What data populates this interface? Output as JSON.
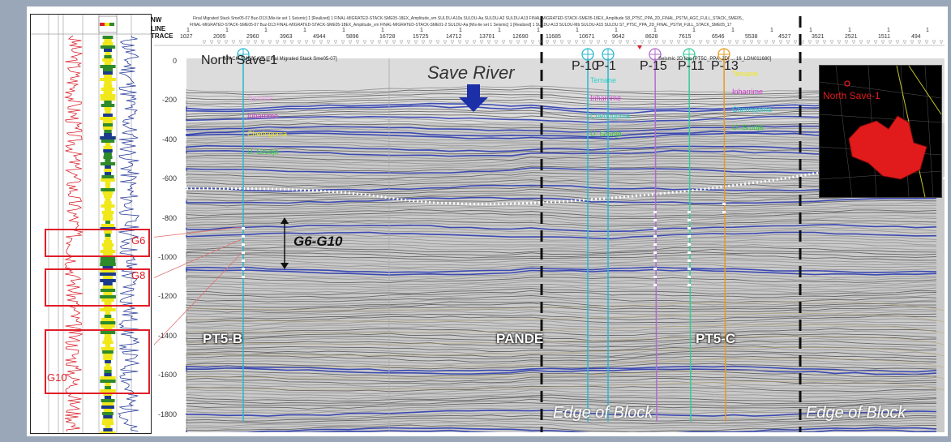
{
  "header": {
    "nw": "NW",
    "line_label": "LINE",
    "trace_label": "TRACE",
    "top_row": "Final Migrated Stack Sme05-07   Buz-D13 [Mis-tie set 1 Seismic] 1 [Realized] 1    FINAL-MIGRATED-STACK-SME05-18EX_Amplitude_vm        SULDU-A10a       SULDU-Aa          SULDU-A2          SULDU-A13     FINAL-MIGRATED-STACK-SME05-18EX_Amplitude          S8_PT5C_PPA_2D_FINAL_PSTM_AGC_FULL_STACK_SME05_",
    "second_row": "FINAL-MIGRATED-STACK-SME05-07      Buz-D13    FINAL-MIGRATED-STACK-SME05-18EX_Amplitude_vm      FINAL-MIGRATED-STACK-SME01-2     SULDU-Aa [Mis-tie set 1 Seismic] 1 [Realized] 1    SULDU-A13    SULDU-Mb    SULDU-A15   SULDU    S7_PT5C_PPA_2D_FINAL_PSTM_FULL_STACK_SME05_17",
    "line_values": [
      "1",
      "1",
      "1",
      "1",
      "1",
      "1",
      "1",
      "1",
      "1",
      "1",
      "1",
      "1",
      "1",
      "1",
      "1",
      "1",
      "1",
      "1",
      "1",
      "1"
    ],
    "trace_values": [
      "1027",
      "2005",
      "2960",
      "3963",
      "4944",
      "5896",
      "16728",
      "15725",
      "14712",
      "13701",
      "12690",
      "11685",
      "10671",
      "9642",
      "8628",
      "7615",
      "6546",
      "5538",
      "4527",
      "3521",
      "2521",
      "1511",
      "494"
    ]
  },
  "depth_ticks": [
    "0",
    "-200",
    "-400",
    "-600",
    "-800",
    "-1000",
    "-1200",
    "-1400",
    "-1600",
    "-1800"
  ],
  "wells": {
    "north_save": "North Save-1",
    "p10": "P-10",
    "p1": "P-1",
    "p15": "P-15",
    "p11": "P-11",
    "p13": "P-13"
  },
  "seismic_caption": "Seismic 2D line [PT5C_PPA_2D] ... 16_LDN011680]",
  "line_caption_left": "STACK-SME05-07] [Final Migrated Stack Sme05-07]",
  "horizons_left": [
    "Temane",
    "Inharrime",
    "Cheringoma",
    "U. Grudja"
  ],
  "horizons_mid": [
    "Temane",
    "Inharrime",
    "Cheringoma",
    "U. Grudja"
  ],
  "horizons_right": [
    "Temane",
    "Inharrime",
    "Cheringoma",
    "U. Grudja"
  ],
  "save_river": "Save River",
  "g_interval": "G6-G10",
  "log_zones": {
    "g6": "G6",
    "g8": "G8",
    "g10": "G10"
  },
  "blocks": {
    "left": "PT5-B",
    "middle": "PANDE",
    "right": "PT5-C"
  },
  "edge_left": "Edge of Block",
  "edge_right": "Edge of Block",
  "inset_label": "North Save-1",
  "colors": {
    "log_red": "#d8202a",
    "log_blue": "#283c9a",
    "log_yellow": "#f0e81a",
    "log_green": "#2f8a2a",
    "zone_box": "#e01e28",
    "reflector_blue": "#2233aa",
    "inset_red": "#e11b1b"
  }
}
